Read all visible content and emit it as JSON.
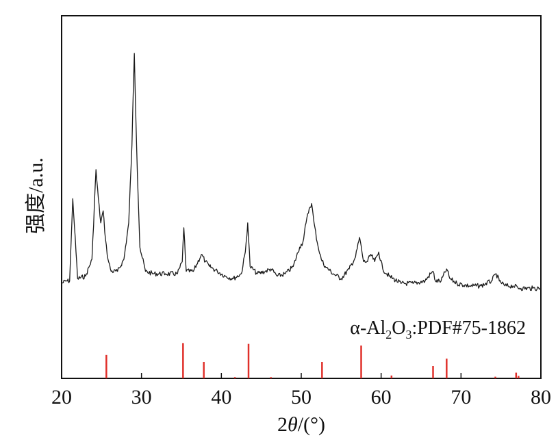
{
  "chart_data": {
    "type": "line",
    "title": "",
    "xlabel_prefix": "2",
    "xlabel_symbol": "θ",
    "xlabel_suffix": "/(°)",
    "ylabel": "强度/a.u.",
    "xlim": [
      20,
      80
    ],
    "x_ticks": [
      20,
      30,
      40,
      50,
      60,
      70,
      80
    ],
    "y_ticks_shown": false,
    "grid": false,
    "colors": {
      "pattern": "#1a1a1a",
      "reference": "#e0302a",
      "axis": "#111111"
    },
    "series": [
      {
        "name": "",
        "x": [
          20.0,
          20.5,
          21.0,
          21.4,
          22.0,
          23.0,
          23.8,
          24.3,
          24.6,
          24.9,
          25.2,
          25.5,
          25.8,
          26.2,
          27.0,
          27.8,
          28.4,
          28.8,
          29.1,
          29.4,
          29.8,
          30.5,
          31.5,
          33.0,
          34.5,
          35.1,
          35.3,
          35.6,
          36.5,
          37.5,
          38.0,
          38.5,
          39.5,
          40.5,
          41.5,
          42.5,
          43.0,
          43.3,
          43.6,
          44.5,
          45.5,
          46.2,
          47.0,
          48.0,
          49.0,
          49.8,
          50.2,
          50.6,
          51.0,
          51.3,
          51.6,
          52.0,
          52.5,
          53.0,
          54.0,
          55.0,
          56.0,
          56.8,
          57.3,
          57.8,
          58.3,
          58.7,
          59.2,
          59.7,
          60.2,
          61.0,
          62.5,
          64.0,
          65.5,
          66.2,
          66.5,
          66.8,
          67.5,
          68.2,
          68.6,
          69.5,
          71.0,
          72.5,
          73.8,
          74.4,
          74.8,
          75.5,
          76.5,
          77.5,
          79.0,
          80.0
        ],
        "values": [
          5,
          6,
          6,
          40,
          7,
          8,
          15,
          52,
          40,
          30,
          35,
          23,
          15,
          10,
          10,
          15,
          30,
          62,
          100,
          60,
          20,
          10,
          9,
          9,
          9,
          14,
          28,
          10,
          10,
          17,
          14,
          12,
          10,
          8,
          7,
          9,
          18,
          30,
          12,
          9,
          10,
          11,
          8,
          9,
          12,
          20,
          22,
          30,
          36,
          38,
          30,
          22,
          15,
          12,
          9,
          7,
          11,
          16,
          24,
          14,
          14,
          17,
          14,
          18,
          11,
          8,
          5,
          5,
          6,
          9,
          10,
          6,
          6,
          11,
          7,
          5,
          4,
          4,
          6,
          9,
          6,
          4,
          4,
          3,
          3,
          3
        ]
      }
    ],
    "reference": {
      "label_prefix": "α-Al",
      "label_sub1": "2",
      "label_mid": "O",
      "label_sub2": "3",
      "label_suffix": ":PDF#75-1862",
      "peaks_x": [
        25.6,
        35.2,
        37.8,
        41.7,
        43.4,
        46.2,
        52.6,
        57.5,
        61.3,
        66.5,
        68.2,
        74.3,
        76.9,
        77.2
      ],
      "peaks_intensity": [
        57,
        86,
        40,
        3,
        84,
        3,
        40,
        80,
        7,
        30,
        48,
        4,
        14,
        6
      ]
    }
  }
}
